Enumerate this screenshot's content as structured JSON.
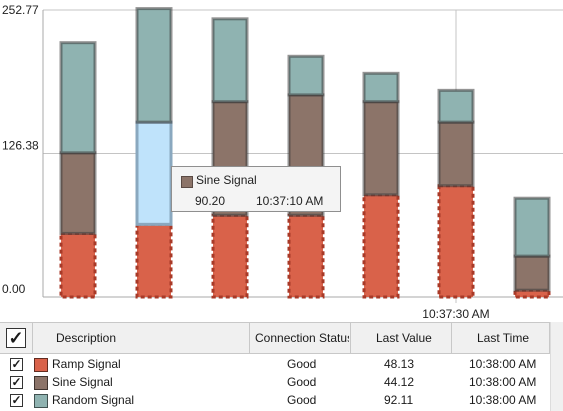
{
  "chart_data": {
    "type": "bar",
    "stacked": true,
    "yticks": [
      "252.77",
      "126.38",
      "0.00"
    ],
    "ylim": [
      0,
      252.77
    ],
    "xtick_label": "10:37:30 AM",
    "grid": true,
    "series": [
      {
        "name": "Ramp Signal",
        "color": "#d9624a",
        "values": [
          56,
          64,
          72,
          72,
          90,
          98,
          6
        ]
      },
      {
        "name": "Sine Signal",
        "color": "#8c7469",
        "values": [
          71,
          90,
          100,
          106,
          82,
          56,
          30
        ]
      },
      {
        "name": "Random Signal",
        "color": "#8fb3b1",
        "values": [
          97,
          100,
          73,
          34,
          25,
          28,
          51
        ]
      }
    ],
    "highlight": {
      "bar_index": 1,
      "series": "Sine Signal",
      "color": "#bfe3fb"
    }
  },
  "tooltip": {
    "series": "Sine Signal",
    "value": "90.20",
    "time": "10:37:10 AM"
  },
  "grid": {
    "columns": [
      "Description",
      "Connection Status",
      "Last Value",
      "Last Time"
    ],
    "header_checked": "✓",
    "rows": [
      {
        "checked": "✓",
        "color": "#d9624a",
        "description": "Ramp Signal",
        "status": "Good",
        "last_value": "48.13",
        "last_time": "10:38:00 AM"
      },
      {
        "checked": "✓",
        "color": "#8c7469",
        "description": "Sine Signal",
        "status": "Good",
        "last_value": "44.12",
        "last_time": "10:38:00 AM"
      },
      {
        "checked": "✓",
        "color": "#8fb3b1",
        "description": "Random Signal",
        "status": "Good",
        "last_value": "92.11",
        "last_time": "10:38:00 AM"
      }
    ]
  }
}
